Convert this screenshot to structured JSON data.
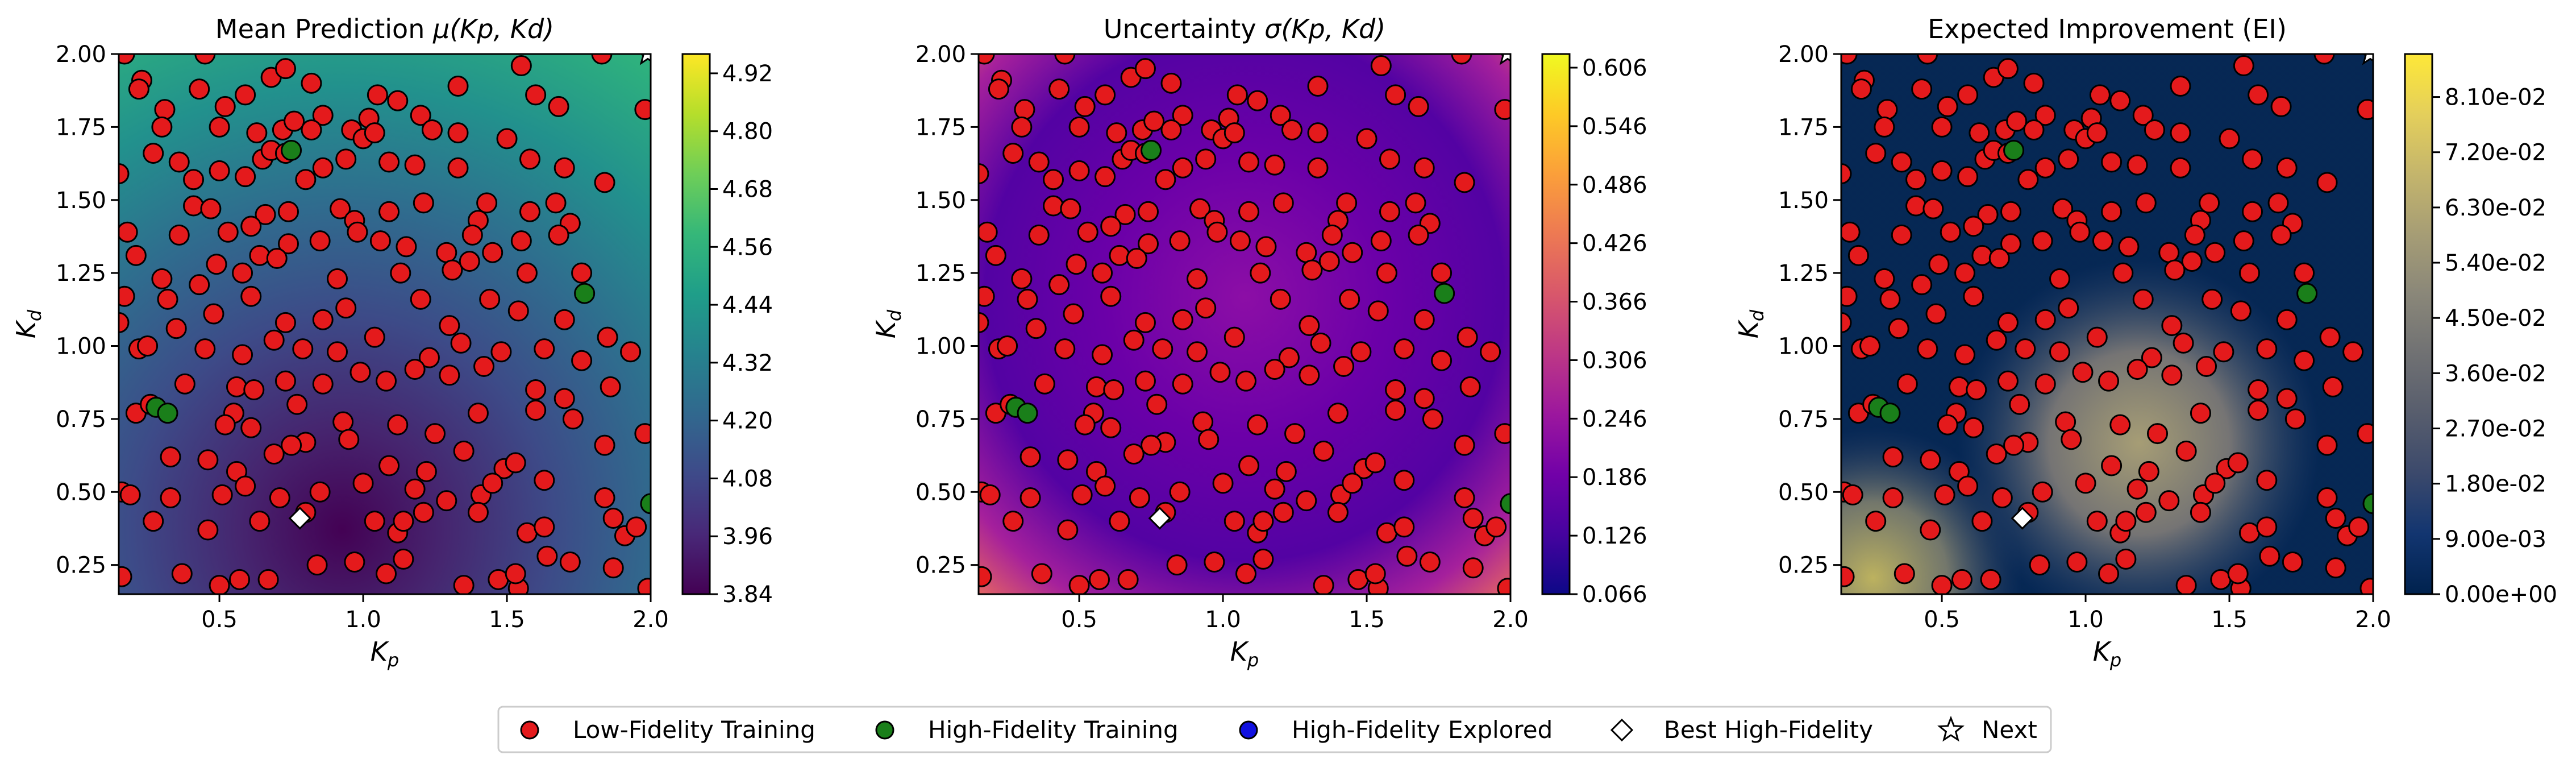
{
  "legend": {
    "items": [
      {
        "label": "Low-Fidelity Training",
        "marker": "circle",
        "color": "#e41a1c"
      },
      {
        "label": "High-Fidelity Training",
        "marker": "circle",
        "color": "#1a7f1a"
      },
      {
        "label": "High-Fidelity Explored",
        "marker": "circle",
        "color": "#1010e0"
      },
      {
        "label": "Best High-Fidelity",
        "marker": "diamond",
        "color": "#ffffff"
      },
      {
        "label": "Next",
        "marker": "star",
        "color": "#ffffff"
      }
    ]
  },
  "chart_data": [
    {
      "type": "heatmap",
      "title": "Mean Prediction μ(Kp, Kd)",
      "title_text": "Mean Prediction ",
      "title_math": "μ(Kp, Kd)",
      "xlabel": "Kp",
      "ylabel": "Kd",
      "xlim": [
        0.15,
        2.0
      ],
      "ylim": [
        0.15,
        2.0
      ],
      "xticks": [
        "0.5",
        "1.0",
        "1.5",
        "2.0"
      ],
      "yticks": [
        "0.25",
        "0.50",
        "0.75",
        "1.00",
        "1.25",
        "1.50",
        "1.75",
        "2.00"
      ],
      "colormap": "viridis",
      "colorbar_range": [
        3.84,
        4.96
      ],
      "colorbar_ticks": [
        "3.84",
        "3.96",
        "4.08",
        "4.20",
        "4.32",
        "4.44",
        "4.56",
        "4.68",
        "4.80",
        "4.92"
      ]
    },
    {
      "type": "heatmap",
      "title": "Uncertainty σ(Kp, Kd)",
      "title_text": "Uncertainty ",
      "title_math": "σ(Kp, Kd)",
      "xlabel": "Kp",
      "ylabel": "Kd",
      "xlim": [
        0.15,
        2.0
      ],
      "ylim": [
        0.15,
        2.0
      ],
      "xticks": [
        "0.5",
        "1.0",
        "1.5",
        "2.0"
      ],
      "yticks": [
        "0.25",
        "0.50",
        "0.75",
        "1.00",
        "1.25",
        "1.50",
        "1.75",
        "2.00"
      ],
      "colormap": "plasma",
      "colorbar_range": [
        0.066,
        0.62
      ],
      "colorbar_ticks": [
        "0.066",
        "0.126",
        "0.186",
        "0.246",
        "0.306",
        "0.366",
        "0.426",
        "0.486",
        "0.546",
        "0.606"
      ]
    },
    {
      "type": "heatmap",
      "title": "Expected Improvement (EI)",
      "title_text": "Expected Improvement (EI)",
      "title_math": "",
      "xlabel": "Kp",
      "ylabel": "Kd",
      "xlim": [
        0.15,
        2.0
      ],
      "ylim": [
        0.15,
        2.0
      ],
      "xticks": [
        "0.5",
        "1.0",
        "1.5",
        "2.0"
      ],
      "yticks": [
        "0.25",
        "0.50",
        "0.75",
        "1.00",
        "1.25",
        "1.50",
        "1.75",
        "2.00"
      ],
      "colormap": "cividis",
      "colorbar_range": [
        0.0,
        0.088
      ],
      "colorbar_ticks": [
        "0.00e+00",
        "9.00e-03",
        "1.80e-02",
        "2.70e-02",
        "3.60e-02",
        "4.50e-02",
        "5.40e-02",
        "6.30e-02",
        "7.20e-02",
        "8.10e-02"
      ]
    }
  ],
  "points": {
    "low_fidelity": [
      [
        0.17,
        2.0
      ],
      [
        0.23,
        1.91
      ],
      [
        0.22,
        1.88
      ],
      [
        0.31,
        1.81
      ],
      [
        0.43,
        1.88
      ],
      [
        0.45,
        2.0
      ],
      [
        0.52,
        1.82
      ],
      [
        0.59,
        1.86
      ],
      [
        0.68,
        1.92
      ],
      [
        0.73,
        1.95
      ],
      [
        0.82,
        1.9
      ],
      [
        0.86,
        1.79
      ],
      [
        0.96,
        1.74
      ],
      [
        1.02,
        1.78
      ],
      [
        1.05,
        1.86
      ],
      [
        1.12,
        1.84
      ],
      [
        1.2,
        1.79
      ],
      [
        1.33,
        1.89
      ],
      [
        1.55,
        1.96
      ],
      [
        1.6,
        1.86
      ],
      [
        1.68,
        1.82
      ],
      [
        1.83,
        2.0
      ],
      [
        1.98,
        1.81
      ],
      [
        0.3,
        1.75
      ],
      [
        0.5,
        1.75
      ],
      [
        0.63,
        1.73
      ],
      [
        0.72,
        1.74
      ],
      [
        0.76,
        1.77
      ],
      [
        0.82,
        1.74
      ],
      [
        1.0,
        1.71
      ],
      [
        1.04,
        1.73
      ],
      [
        1.24,
        1.74
      ],
      [
        1.33,
        1.73
      ],
      [
        1.5,
        1.71
      ],
      [
        0.27,
        1.66
      ],
      [
        0.36,
        1.63
      ],
      [
        0.41,
        1.57
      ],
      [
        0.5,
        1.6
      ],
      [
        0.59,
        1.58
      ],
      [
        0.65,
        1.64
      ],
      [
        0.68,
        1.67
      ],
      [
        0.73,
        1.66
      ],
      [
        0.86,
        1.61
      ],
      [
        0.8,
        1.57
      ],
      [
        0.94,
        1.64
      ],
      [
        1.09,
        1.63
      ],
      [
        1.18,
        1.62
      ],
      [
        1.33,
        1.61
      ],
      [
        1.58,
        1.64
      ],
      [
        1.7,
        1.61
      ],
      [
        1.84,
        1.56
      ],
      [
        0.15,
        1.59
      ],
      [
        0.41,
        1.48
      ],
      [
        0.47,
        1.47
      ],
      [
        0.66,
        1.45
      ],
      [
        0.61,
        1.41
      ],
      [
        0.74,
        1.46
      ],
      [
        0.92,
        1.47
      ],
      [
        0.97,
        1.43
      ],
      [
        1.09,
        1.46
      ],
      [
        1.21,
        1.49
      ],
      [
        1.4,
        1.43
      ],
      [
        1.43,
        1.49
      ],
      [
        1.58,
        1.46
      ],
      [
        1.67,
        1.49
      ],
      [
        1.72,
        1.42
      ],
      [
        0.18,
        1.39
      ],
      [
        0.21,
        1.31
      ],
      [
        0.36,
        1.38
      ],
      [
        0.53,
        1.39
      ],
      [
        0.64,
        1.31
      ],
      [
        0.74,
        1.35
      ],
      [
        0.85,
        1.36
      ],
      [
        0.98,
        1.39
      ],
      [
        1.06,
        1.36
      ],
      [
        1.15,
        1.34
      ],
      [
        1.38,
        1.38
      ],
      [
        1.55,
        1.36
      ],
      [
        1.68,
        1.38
      ],
      [
        0.3,
        1.23
      ],
      [
        0.43,
        1.21
      ],
      [
        0.49,
        1.28
      ],
      [
        0.58,
        1.25
      ],
      [
        0.7,
        1.3
      ],
      [
        0.91,
        1.23
      ],
      [
        1.13,
        1.25
      ],
      [
        1.29,
        1.32
      ],
      [
        1.31,
        1.26
      ],
      [
        1.37,
        1.29
      ],
      [
        1.45,
        1.32
      ],
      [
        1.57,
        1.25
      ],
      [
        1.76,
        1.25
      ],
      [
        0.17,
        1.17
      ],
      [
        0.32,
        1.16
      ],
      [
        0.35,
        1.06
      ],
      [
        0.48,
        1.11
      ],
      [
        0.61,
        1.17
      ],
      [
        0.73,
        1.08
      ],
      [
        0.86,
        1.09
      ],
      [
        0.94,
        1.13
      ],
      [
        1.2,
        1.16
      ],
      [
        1.3,
        1.07
      ],
      [
        1.44,
        1.16
      ],
      [
        1.54,
        1.12
      ],
      [
        1.7,
        1.09
      ],
      [
        1.85,
        1.03
      ],
      [
        0.15,
        1.08
      ],
      [
        0.22,
        0.99
      ],
      [
        0.25,
        1.0
      ],
      [
        0.45,
        0.99
      ],
      [
        0.58,
        0.97
      ],
      [
        0.69,
        1.02
      ],
      [
        0.79,
        0.99
      ],
      [
        0.91,
        0.98
      ],
      [
        1.04,
        1.03
      ],
      [
        1.23,
        0.96
      ],
      [
        1.34,
        1.01
      ],
      [
        1.48,
        0.98
      ],
      [
        1.63,
        0.99
      ],
      [
        1.76,
        0.95
      ],
      [
        1.93,
        0.98
      ],
      [
        0.21,
        0.77
      ],
      [
        0.38,
        0.87
      ],
      [
        0.56,
        0.86
      ],
      [
        0.62,
        0.85
      ],
      [
        0.73,
        0.88
      ],
      [
        0.77,
        0.8
      ],
      [
        0.86,
        0.87
      ],
      [
        0.99,
        0.91
      ],
      [
        1.08,
        0.88
      ],
      [
        1.18,
        0.92
      ],
      [
        1.3,
        0.9
      ],
      [
        1.42,
        0.93
      ],
      [
        1.6,
        0.85
      ],
      [
        1.7,
        0.82
      ],
      [
        1.86,
        0.86
      ],
      [
        0.26,
        0.8
      ],
      [
        0.55,
        0.77
      ],
      [
        0.52,
        0.73
      ],
      [
        0.61,
        0.72
      ],
      [
        0.8,
        0.67
      ],
      [
        0.93,
        0.74
      ],
      [
        1.12,
        0.73
      ],
      [
        1.25,
        0.7
      ],
      [
        1.4,
        0.77
      ],
      [
        1.6,
        0.78
      ],
      [
        1.73,
        0.75
      ],
      [
        1.98,
        0.7
      ],
      [
        0.33,
        0.62
      ],
      [
        0.46,
        0.61
      ],
      [
        0.56,
        0.57
      ],
      [
        0.69,
        0.63
      ],
      [
        0.75,
        0.66
      ],
      [
        0.95,
        0.68
      ],
      [
        1.09,
        0.59
      ],
      [
        1.22,
        0.57
      ],
      [
        1.35,
        0.64
      ],
      [
        1.49,
        0.58
      ],
      [
        1.53,
        0.6
      ],
      [
        1.84,
        0.66
      ],
      [
        0.16,
        0.5
      ],
      [
        0.19,
        0.49
      ],
      [
        0.33,
        0.48
      ],
      [
        0.51,
        0.49
      ],
      [
        0.59,
        0.52
      ],
      [
        0.71,
        0.48
      ],
      [
        0.85,
        0.5
      ],
      [
        1.0,
        0.53
      ],
      [
        1.18,
        0.51
      ],
      [
        1.29,
        0.47
      ],
      [
        1.41,
        0.49
      ],
      [
        1.45,
        0.53
      ],
      [
        1.63,
        0.54
      ],
      [
        1.84,
        0.48
      ],
      [
        0.27,
        0.4
      ],
      [
        0.46,
        0.37
      ],
      [
        0.64,
        0.4
      ],
      [
        0.8,
        0.43
      ],
      [
        1.04,
        0.4
      ],
      [
        1.12,
        0.36
      ],
      [
        1.14,
        0.4
      ],
      [
        1.21,
        0.43
      ],
      [
        1.4,
        0.43
      ],
      [
        1.57,
        0.36
      ],
      [
        1.63,
        0.38
      ],
      [
        1.87,
        0.41
      ],
      [
        1.91,
        0.35
      ],
      [
        1.95,
        0.38
      ],
      [
        0.16,
        0.21
      ],
      [
        0.37,
        0.22
      ],
      [
        0.5,
        0.18
      ],
      [
        0.57,
        0.2
      ],
      [
        0.67,
        0.2
      ],
      [
        0.84,
        0.25
      ],
      [
        0.97,
        0.26
      ],
      [
        1.08,
        0.22
      ],
      [
        1.14,
        0.27
      ],
      [
        1.35,
        0.18
      ],
      [
        1.47,
        0.2
      ],
      [
        1.54,
        0.17
      ],
      [
        1.53,
        0.22
      ],
      [
        1.64,
        0.28
      ],
      [
        1.72,
        0.26
      ],
      [
        1.87,
        0.24
      ],
      [
        1.99,
        0.17
      ]
    ],
    "high_fidelity": [
      [
        0.75,
        1.67
      ],
      [
        1.77,
        1.18
      ],
      [
        0.28,
        0.79
      ],
      [
        0.32,
        0.77
      ],
      [
        2.0,
        0.46
      ]
    ],
    "best": [
      [
        0.78,
        0.41
      ]
    ],
    "next": [
      [
        1.99,
        2.0
      ]
    ]
  }
}
